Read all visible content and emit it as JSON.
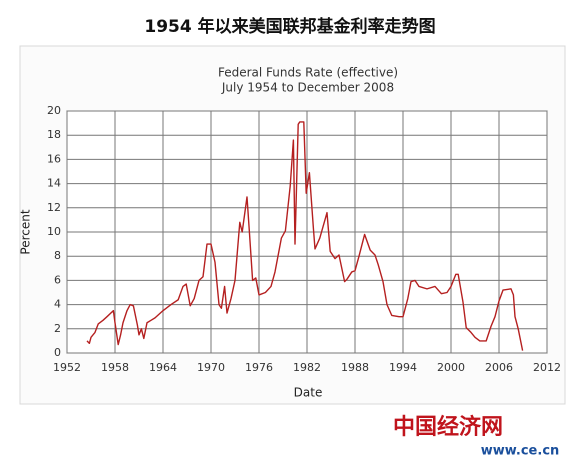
{
  "header": {
    "title": "1954 年以来美国联邦基金利率走势图"
  },
  "chart_data": {
    "type": "line",
    "title": "Federal Funds Rate (effective)",
    "subtitle": "July 1954 to December 2008",
    "xlabel": "Date",
    "ylabel": "Percent",
    "x": [
      1954.5,
      1954.8,
      1955.0,
      1955.5,
      1955.9,
      1956.5,
      1957.0,
      1957.8,
      1958.0,
      1958.4,
      1958.7,
      1959.0,
      1959.5,
      1959.9,
      1960.3,
      1960.8,
      1961.0,
      1961.3,
      1961.6,
      1962.0,
      1962.5,
      1963.0,
      1963.5,
      1964.0,
      1965.0,
      1965.9,
      1966.5,
      1966.9,
      1967.4,
      1967.9,
      1968.5,
      1969.0,
      1969.5,
      1970.0,
      1970.5,
      1971.0,
      1971.3,
      1971.7,
      1972.0,
      1972.5,
      1973.0,
      1973.6,
      1973.9,
      1974.5,
      1974.8,
      1975.2,
      1975.6,
      1976.0,
      1976.8,
      1977.5,
      1978.0,
      1978.8,
      1979.3,
      1979.9,
      1980.3,
      1980.5,
      1980.9,
      1981.1,
      1981.6,
      1981.9,
      1982.3,
      1982.8,
      1983.0,
      1983.6,
      1984.5,
      1984.9,
      1985.5,
      1986.0,
      1986.7,
      1987.0,
      1987.6,
      1988.0,
      1988.5,
      1989.2,
      1989.9,
      1990.5,
      1990.9,
      1991.5,
      1992.0,
      1992.6,
      1993.5,
      1994.0,
      1994.6,
      1995.0,
      1995.5,
      1996.0,
      1997.0,
      1998.0,
      1998.8,
      1999.5,
      2000.0,
      2000.6,
      2000.9,
      2001.5,
      2001.9,
      2002.5,
      2003.0,
      2003.6,
      2004.4,
      2005.0,
      2005.5,
      2006.0,
      2006.5,
      2007.5,
      2007.8,
      2008.0,
      2008.4,
      2008.95
    ],
    "series": [
      {
        "name": "Federal Funds Rate (effective)",
        "color": "#b52020",
        "values": [
          1.0,
          0.8,
          1.3,
          1.7,
          2.4,
          2.7,
          3.0,
          3.5,
          2.5,
          0.7,
          1.5,
          2.5,
          3.5,
          4.0,
          3.9,
          2.3,
          1.5,
          2.0,
          1.2,
          2.5,
          2.7,
          2.9,
          3.2,
          3.5,
          4.0,
          4.4,
          5.5,
          5.7,
          3.9,
          4.5,
          6.0,
          6.3,
          9.0,
          9.0,
          7.5,
          4.0,
          3.7,
          5.5,
          3.3,
          4.5,
          6.0,
          10.8,
          10.0,
          12.9,
          10.0,
          6.0,
          6.2,
          4.8,
          5.0,
          5.5,
          6.7,
          9.5,
          10.1,
          13.8,
          17.6,
          9.0,
          18.9,
          19.1,
          19.1,
          13.2,
          14.9,
          10.3,
          8.6,
          9.5,
          11.6,
          8.4,
          7.8,
          8.1,
          5.9,
          6.1,
          6.7,
          6.8,
          8.0,
          9.8,
          8.5,
          8.1,
          7.3,
          5.9,
          4.0,
          3.1,
          3.0,
          3.0,
          4.5,
          5.9,
          6.0,
          5.5,
          5.3,
          5.5,
          4.9,
          5.0,
          5.5,
          6.5,
          6.5,
          4.2,
          2.1,
          1.7,
          1.3,
          1.0,
          1.0,
          2.2,
          3.0,
          4.3,
          5.2,
          5.3,
          4.8,
          3.0,
          2.0,
          0.2
        ]
      }
    ],
    "xlim": [
      1952,
      2012
    ],
    "xticks": [
      1952,
      1958,
      1964,
      1970,
      1976,
      1982,
      1988,
      1994,
      2000,
      2006,
      2012
    ],
    "ylim": [
      0,
      20
    ],
    "yticks": [
      0,
      2,
      4,
      6,
      8,
      10,
      12,
      14,
      16,
      18,
      20
    ],
    "grid": true
  },
  "watermark": {
    "logo": "中国经济网",
    "url": "www.ce.cn"
  }
}
